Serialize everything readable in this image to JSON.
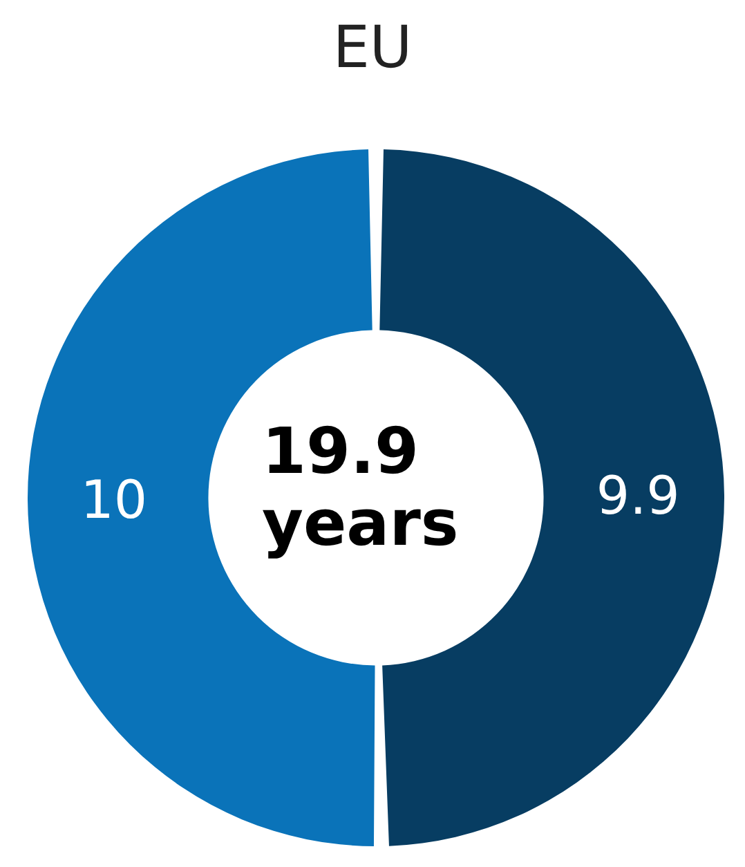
{
  "chart_data": {
    "type": "donut",
    "title": "EU",
    "categories": [
      null,
      null
    ],
    "values": [
      9.9,
      10
    ],
    "colors": [
      "#073d62",
      "#0a73b9"
    ],
    "data_labels": true,
    "annotations": [
      "19.9 years"
    ]
  }
}
